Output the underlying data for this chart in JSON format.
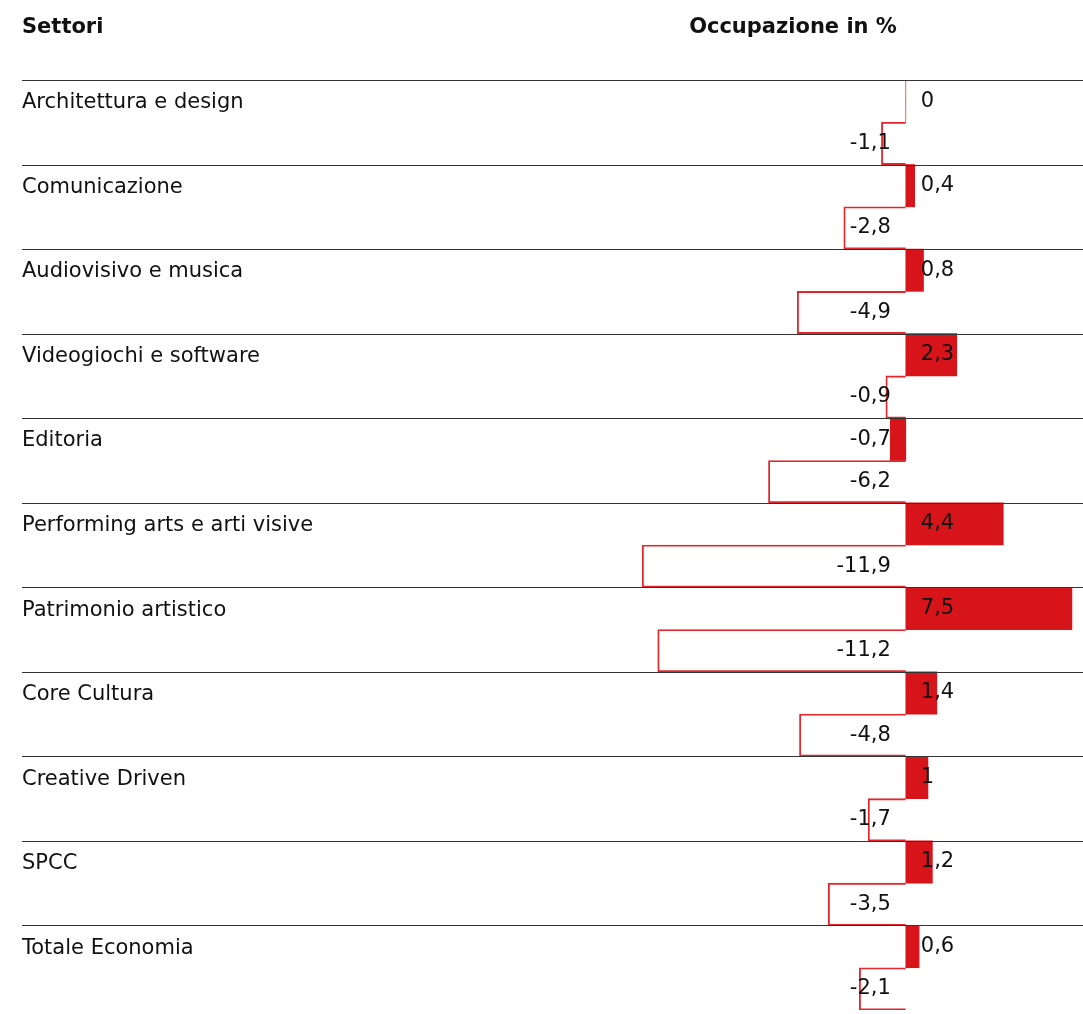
{
  "chart_data": {
    "type": "bar",
    "orientation": "horizontal",
    "ylabel": "Settori",
    "xlabel": "Occupazione in %",
    "categories": [
      "Architettura e design",
      "Comunicazione",
      "Audiovisivo e musica",
      "Videogiochi e software",
      "Editoria",
      "Performing arts e arti visive",
      "Patrimonio artistico",
      "Core Cultura",
      "Creative Driven",
      "SPCC",
      "Totale Economia"
    ],
    "series": [
      {
        "color": "#d7141a",
        "values": [
          0,
          0.4,
          0.8,
          2.3,
          -0.7,
          4.4,
          7.5,
          1.4,
          1,
          1.2,
          0.6
        ],
        "value_labels": [
          "0",
          "0,4",
          "0,8",
          "2,3",
          "-0,7",
          "4,4",
          "7,5",
          "1,4",
          "1",
          "1,2",
          "0,6"
        ]
      },
      {
        "color": "#e3262b",
        "values": [
          -1.1,
          -2.8,
          -4.9,
          -0.9,
          -6.2,
          -11.9,
          -11.2,
          -4.8,
          -1.7,
          -3.5,
          -2.1
        ],
        "value_labels": [
          "-1,1",
          "-2,8",
          "-4,9",
          "-0,9",
          "-6,2",
          "-11,9",
          "-11,2",
          "-4,8",
          "-1,7",
          "-3,5",
          "-2,1"
        ]
      }
    ],
    "grid": "y",
    "tick_labels": false,
    "legend": false
  }
}
